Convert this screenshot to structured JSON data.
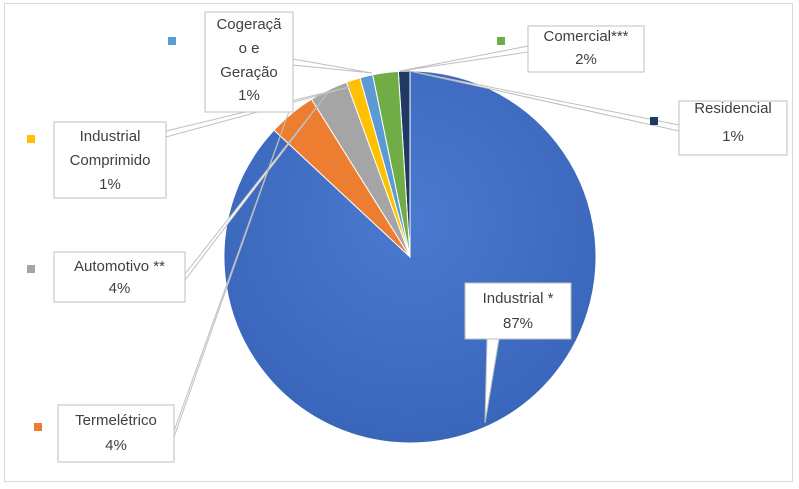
{
  "chart_data": {
    "type": "pie",
    "title": "",
    "slices": [
      {
        "label": "Residencial",
        "value": 1,
        "display": "1%",
        "color": "#203864",
        "legend_color": "#1f3864",
        "lines": [
          "Residencial",
          "1%"
        ]
      },
      {
        "label": "Comercial***",
        "value": 2,
        "display": "2%",
        "color": "#70ad47",
        "legend_color": "#70ad47",
        "lines": [
          "Comercial***",
          "2%"
        ]
      },
      {
        "label": "Cogeração e Geração",
        "value": 1,
        "display": "1%",
        "color": "#5b9bd5",
        "legend_color": "#5b9bd5",
        "lines": [
          "Cogeraçã",
          "o e",
          "Geração",
          "1%"
        ]
      },
      {
        "label": "Industrial Comprimido",
        "value": 1,
        "display": "1%",
        "color": "#ffc000",
        "legend_color": "#ffc000",
        "lines": [
          "Industrial",
          "Comprimido",
          "1%"
        ]
      },
      {
        "label": "Automotivo **",
        "value": 4,
        "display": "4%",
        "color": "#a5a5a5",
        "legend_color": "#a5a5a5",
        "lines": [
          "Automotivo **",
          "4%"
        ]
      },
      {
        "label": "Termelétrico",
        "value": 4,
        "display": "4%",
        "color": "#ed7d31",
        "legend_color": "#ed7d31",
        "lines": [
          "Termelétrico",
          "4%"
        ]
      },
      {
        "label": "Industrial *",
        "value": 87,
        "display": "87%",
        "color": "#4472c4",
        "legend_color": "#4472c4",
        "lines": [
          "Industrial *",
          "87%"
        ]
      }
    ],
    "legend": "inline markers beside data labels"
  }
}
